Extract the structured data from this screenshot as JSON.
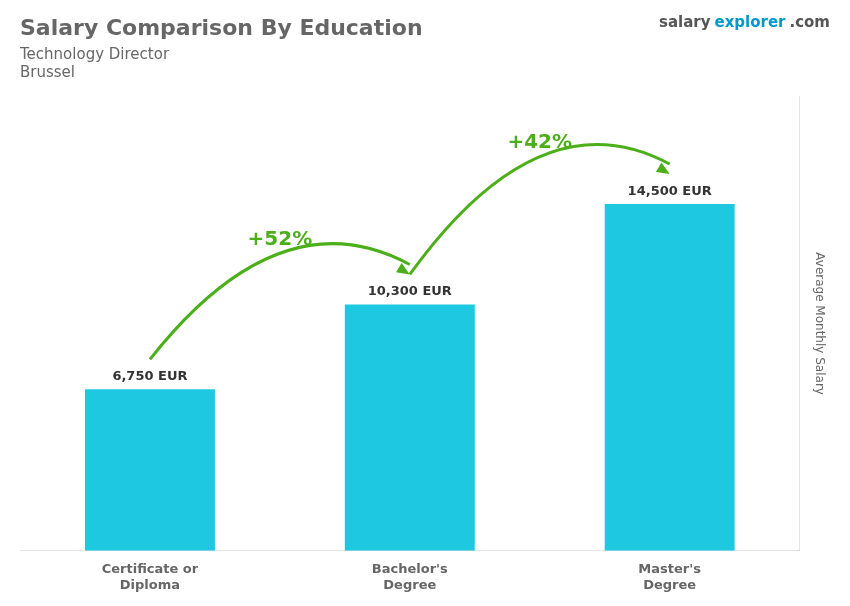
{
  "chart_data": {
    "type": "bar",
    "title": "Salary Comparison By Education",
    "subtitle": [
      "Technology Director",
      "Brussel"
    ],
    "ylabel": "Average Monthly Salary",
    "categories": [
      "Certificate or\nDiploma",
      "Bachelor's\nDegree",
      "Master's\nDegree"
    ],
    "values": [
      6750,
      10300,
      14500
    ],
    "value_labels": [
      "6,750 EUR",
      "10,300 EUR",
      "14,500 EUR"
    ],
    "data_labels": true,
    "color": "#1ec8e0",
    "ylim": [
      0,
      19000
    ],
    "tick_labels": "x",
    "grid": false,
    "annotations": [
      {
        "text": "+52%",
        "from": "Certificate or\nDiploma",
        "to": "Bachelor's\nDegree"
      },
      {
        "text": "+42%",
        "from": "Bachelor's\nDegree",
        "to": "Master's\nDegree"
      },
      {
        "text": "salary"
      },
      {
        "text": "explorer"
      },
      {
        "text": ".com"
      }
    ]
  }
}
